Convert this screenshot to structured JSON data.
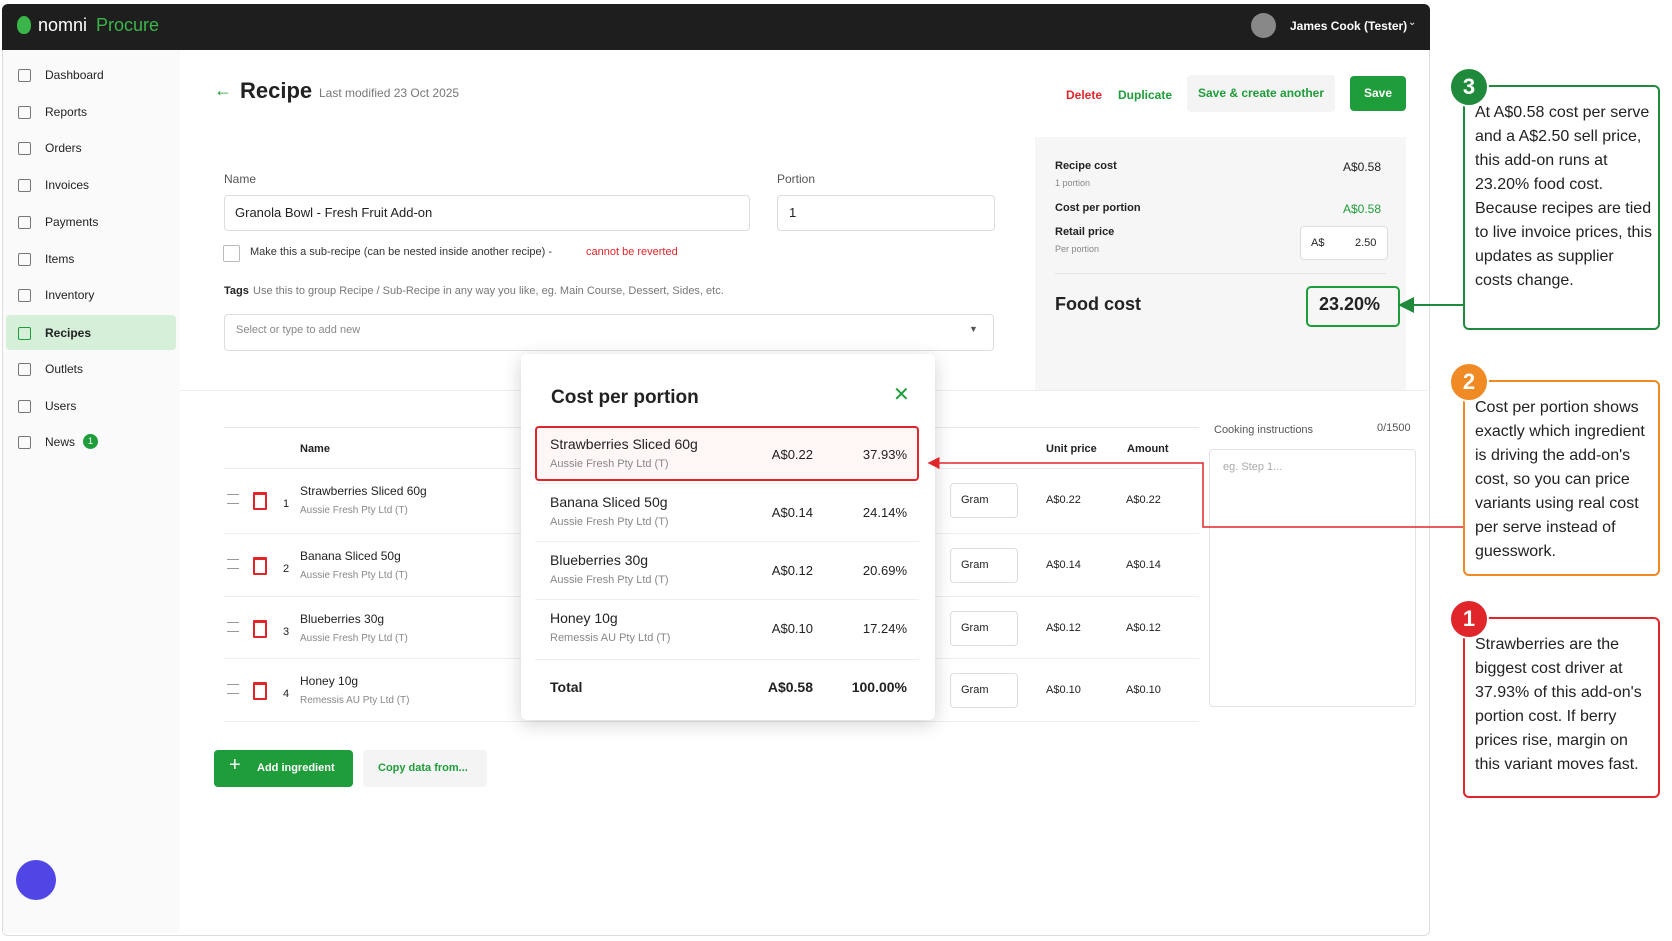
{
  "header": {
    "brand_name": "nomni",
    "brand_product": "Procure",
    "user": "James Cook (Tester)"
  },
  "sidebar": {
    "items": [
      "Dashboard",
      "Reports",
      "Orders",
      "Invoices",
      "Payments",
      "Items",
      "Inventory",
      "Recipes",
      "Outlets",
      "Users",
      "News"
    ],
    "news_badge": 1
  },
  "page": {
    "title": "Recipe",
    "last_modified": "Last modified 23 Oct 2025",
    "delete": "Delete",
    "duplicate": "Duplicate",
    "save_create": "Save & create another",
    "save": "Save"
  },
  "form": {
    "name_label": "Name",
    "name_value": "Granola Bowl - Fresh Fruit Add-on",
    "portion_label": "Portion",
    "portion_value": "1",
    "subrecipe_label": "Make this a sub-recipe (can be nested inside another recipe) -",
    "subrecipe_warning": "cannot be reverted",
    "tags_label": "Tags",
    "tags_help": "Use this to group Recipe / Sub-Recipe in any way you like, eg. Main Course, Dessert, Sides, etc.",
    "tags_placeholder": "Select or type to add new"
  },
  "summary": {
    "recipe_cost_label": "Recipe cost",
    "recipe_cost_sub": "1 portion",
    "recipe_cost": "A$0.58",
    "cost_per_portion_label": "Cost per portion",
    "cost_per_portion": "A$0.58",
    "retail_price_label": "Retail price",
    "retail_price_sub": "Per portion",
    "currency": "A$",
    "retail_price": "2.50",
    "food_cost_label": "Food cost",
    "food_cost": "23.20%"
  },
  "ingredients": {
    "name_header": "Name",
    "unit_price_header": "Unit price",
    "amount_header": "Amount",
    "rows": [
      {
        "index": 1,
        "name": "Strawberries Sliced 60g",
        "supplier": "Aussie Fresh Pty Ltd (T)",
        "unit": "Gram",
        "unit_price": "A$0.22",
        "amount": "A$0.22"
      },
      {
        "index": 2,
        "name": "Banana Sliced 50g",
        "supplier": "Aussie Fresh Pty Ltd (T)",
        "unit": "Gram",
        "unit_price": "A$0.14",
        "amount": "A$0.14"
      },
      {
        "index": 3,
        "name": "Blueberries 30g",
        "supplier": "Aussie Fresh Pty Ltd (T)",
        "unit": "Gram",
        "unit_price": "A$0.12",
        "amount": "A$0.12"
      },
      {
        "index": 4,
        "name": "Honey 10g",
        "supplier": "Remessis AU Pty Ltd (T)",
        "unit": "Gram",
        "unit_price": "A$0.10",
        "amount": "A$0.10"
      }
    ],
    "add_button": "Add ingredient",
    "copy_button": "Copy data from..."
  },
  "cooking": {
    "label": "Cooking instructions",
    "counter": "0/1500",
    "placeholder": "eg. Step 1..."
  },
  "popup": {
    "title": "Cost per portion",
    "rows": [
      {
        "name": "Strawberries Sliced 60g",
        "supplier": "Aussie Fresh Pty Ltd (T)",
        "cost": "A$0.22",
        "share": "37.93%"
      },
      {
        "name": "Banana Sliced 50g",
        "supplier": "Aussie Fresh Pty Ltd (T)",
        "cost": "A$0.14",
        "share": "24.14%"
      },
      {
        "name": "Blueberries 30g",
        "supplier": "Aussie Fresh Pty Ltd (T)",
        "cost": "A$0.12",
        "share": "20.69%"
      },
      {
        "name": "Honey 10g",
        "supplier": "Remessis AU Pty Ltd (T)",
        "cost": "A$0.10",
        "share": "17.24%"
      }
    ],
    "total_label": "Total",
    "total_cost": "A$0.58",
    "total_share": "100.00%"
  },
  "callouts": [
    {
      "number": 3,
      "text": "At A$0.58 cost per serve and a A$2.50 sell price, this add-on runs at 23.20% food cost. Because recipes are tied to live invoice prices, this updates as supplier costs change."
    },
    {
      "number": 2,
      "text": "Cost per portion shows exactly which ingredient is driving the add-on's cost, so you can price variants using real cost per serve instead of guesswork."
    },
    {
      "number": 1,
      "text": "Strawberries are the biggest cost driver at 37.93% of this add-on's portion cost. If berry prices rise, margin on this variant moves fast."
    }
  ]
}
